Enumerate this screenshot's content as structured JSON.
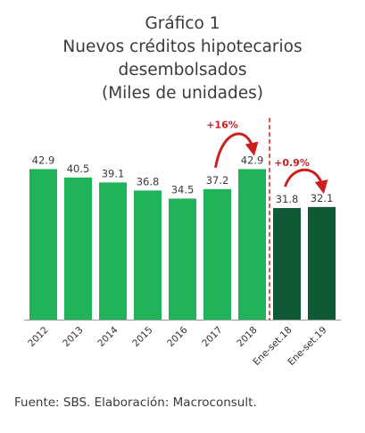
{
  "title": {
    "line1": "Gráfico 1",
    "line2": "Nuevos créditos hipotecarios",
    "line3": "desembolsados",
    "line4": "(Miles de unidades)"
  },
  "source": "Fuente: SBS. Elaboración: Macroconsult.",
  "colors": {
    "bar_annual": "#21b35a",
    "bar_period": "#0f5a34",
    "divider": "#d71f1f",
    "growth": "#cc1f1f",
    "axis": "#9a9a9a"
  },
  "chart_data": {
    "type": "bar",
    "categories": [
      "2012",
      "2013",
      "2014",
      "2015",
      "2016",
      "2017",
      "2018",
      "Ene-set.18",
      "Ene-set.19"
    ],
    "values": [
      42.9,
      40.5,
      39.1,
      36.8,
      34.5,
      37.2,
      42.9,
      31.8,
      32.1
    ],
    "value_labels": [
      "42.9",
      "40.5",
      "39.1",
      "36.8",
      "34.5",
      "37.2",
      "42.9",
      "31.8",
      "32.1"
    ],
    "groups": [
      {
        "range": [
          0,
          6
        ],
        "color": "#21b35a"
      },
      {
        "range": [
          7,
          8
        ],
        "color": "#0f5a34"
      }
    ],
    "annotations": [
      {
        "text": "+16%",
        "from_index": 5,
        "to_index": 6
      },
      {
        "text": "+0.9%",
        "from_index": 7,
        "to_index": 8
      }
    ],
    "divider_after_index": 6,
    "ylim": [
      0,
      45
    ],
    "grid": false
  }
}
